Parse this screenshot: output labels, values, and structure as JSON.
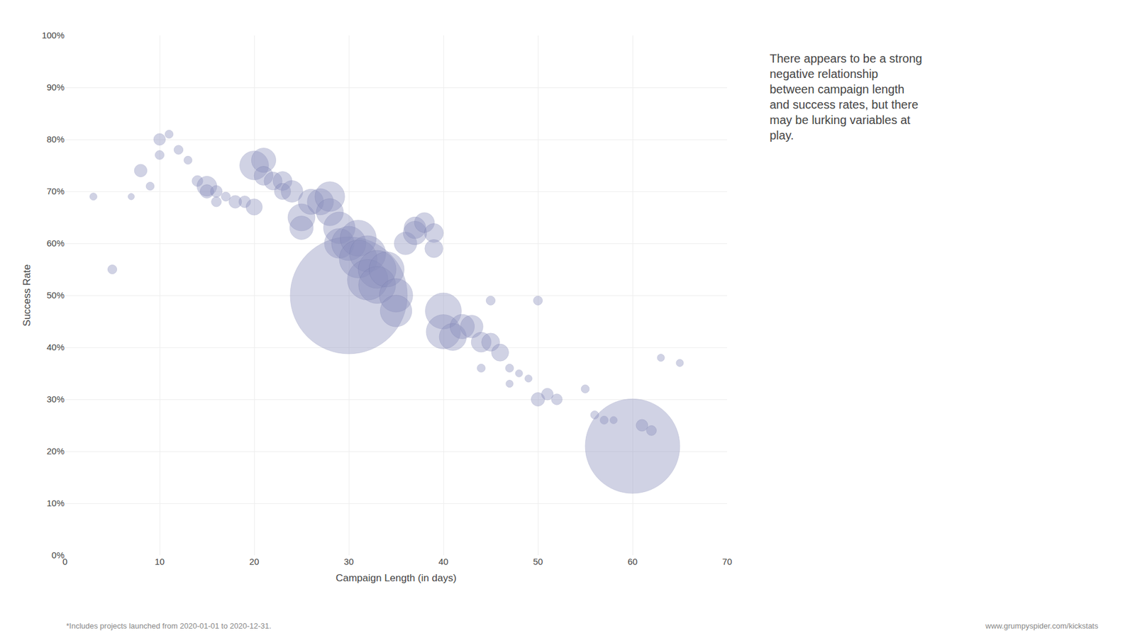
{
  "chart_data": {
    "type": "scatter",
    "xlabel": "Campaign Length (in days)",
    "ylabel": "Success Rate",
    "annotations": [
      "There appears to be a strong\nnegative relationship\nbetween campaign length\nand success rates, but there\nmay be lurking variables at\nplay.",
      "*Includes projects launched from 2020-01-01 to 2020-12-31.",
      "www.grumpyspider.com/kickstats"
    ],
    "x": [
      3,
      5,
      7,
      8,
      9,
      10,
      10,
      11,
      12,
      13,
      14,
      15,
      15,
      16,
      16,
      17,
      18,
      19,
      20,
      20,
      21,
      21,
      22,
      23,
      23,
      24,
      25,
      25,
      26,
      27,
      28,
      28,
      29,
      29,
      30,
      30,
      31,
      31,
      32,
      32,
      33,
      33,
      34,
      35,
      35,
      36,
      37,
      37,
      38,
      39,
      39,
      40,
      40,
      41,
      42,
      43,
      44,
      44,
      45,
      45,
      46,
      47,
      47,
      48,
      49,
      50,
      50,
      51,
      52,
      55,
      56,
      57,
      58,
      60,
      61,
      62,
      63,
      65
    ],
    "values": [
      0.69,
      0.55,
      0.69,
      0.74,
      0.71,
      0.8,
      0.77,
      0.81,
      0.78,
      0.76,
      0.72,
      0.71,
      0.7,
      0.7,
      0.68,
      0.69,
      0.68,
      0.68,
      0.75,
      0.67,
      0.76,
      0.73,
      0.72,
      0.72,
      0.7,
      0.7,
      0.65,
      0.63,
      0.68,
      0.68,
      0.69,
      0.66,
      0.63,
      0.6,
      0.5,
      0.6,
      0.61,
      0.57,
      0.58,
      0.53,
      0.55,
      0.52,
      0.55,
      0.5,
      0.47,
      0.6,
      0.63,
      0.62,
      0.64,
      0.62,
      0.59,
      0.47,
      0.43,
      0.42,
      0.44,
      0.44,
      0.41,
      0.36,
      0.49,
      0.41,
      0.39,
      0.36,
      0.33,
      0.35,
      0.34,
      0.49,
      0.3,
      0.31,
      0.3,
      0.32,
      0.27,
      0.26,
      0.26,
      0.21,
      0.25,
      0.24,
      0.38,
      0.37
    ],
    "sizes": [
      8,
      10,
      7,
      14,
      9,
      13,
      10,
      9,
      10,
      9,
      12,
      22,
      15,
      13,
      11,
      10,
      14,
      13,
      32,
      18,
      27,
      21,
      20,
      21,
      18,
      24,
      30,
      26,
      28,
      29,
      33,
      30,
      35,
      33,
      130,
      38,
      40,
      42,
      40,
      45,
      42,
      41,
      39,
      37,
      35,
      25,
      24,
      26,
      22,
      21,
      20,
      40,
      38,
      30,
      27,
      25,
      22,
      9,
      10,
      20,
      19,
      9,
      8,
      8,
      8,
      10,
      15,
      13,
      12,
      9,
      9,
      9,
      8,
      105,
      13,
      11,
      8,
      8
    ],
    "color": "#8b90be",
    "xlim": [
      0,
      70
    ],
    "ylim": [
      0.0,
      1.0
    ],
    "xticks": [
      0,
      10,
      20,
      30,
      40,
      50,
      60,
      70
    ],
    "yticks": [
      {
        "value": 0.0,
        "label": "0%"
      },
      {
        "value": 0.1,
        "label": "10%"
      },
      {
        "value": 0.2,
        "label": "20%"
      },
      {
        "value": 0.3,
        "label": "30%"
      },
      {
        "value": 0.4,
        "label": "40%"
      },
      {
        "value": 0.5,
        "label": "50%"
      },
      {
        "value": 0.6,
        "label": "60%"
      },
      {
        "value": 0.7,
        "label": "70%"
      },
      {
        "value": 0.8,
        "label": "80%"
      },
      {
        "value": 0.9,
        "label": "90%"
      },
      {
        "value": 1.0,
        "label": "100%"
      }
    ],
    "grid": true
  }
}
